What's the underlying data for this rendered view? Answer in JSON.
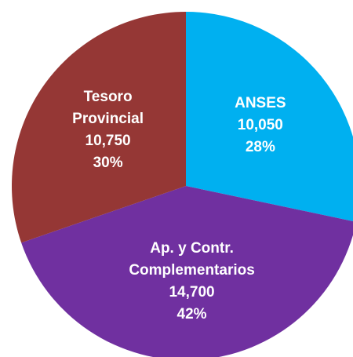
{
  "chart_data": {
    "type": "pie",
    "categories": [
      "ANSES",
      "Ap. y Contr. Complementarios",
      "Tesoro Provincial"
    ],
    "values": [
      10050,
      14700,
      10750
    ],
    "value_labels": [
      "10,050",
      "14,700",
      "10,750"
    ],
    "percentages": [
      28,
      42,
      30
    ],
    "percentage_labels": [
      "28%",
      "42%",
      "30%"
    ],
    "colors": [
      "#00b0f0",
      "#7030a0",
      "#953735"
    ]
  }
}
